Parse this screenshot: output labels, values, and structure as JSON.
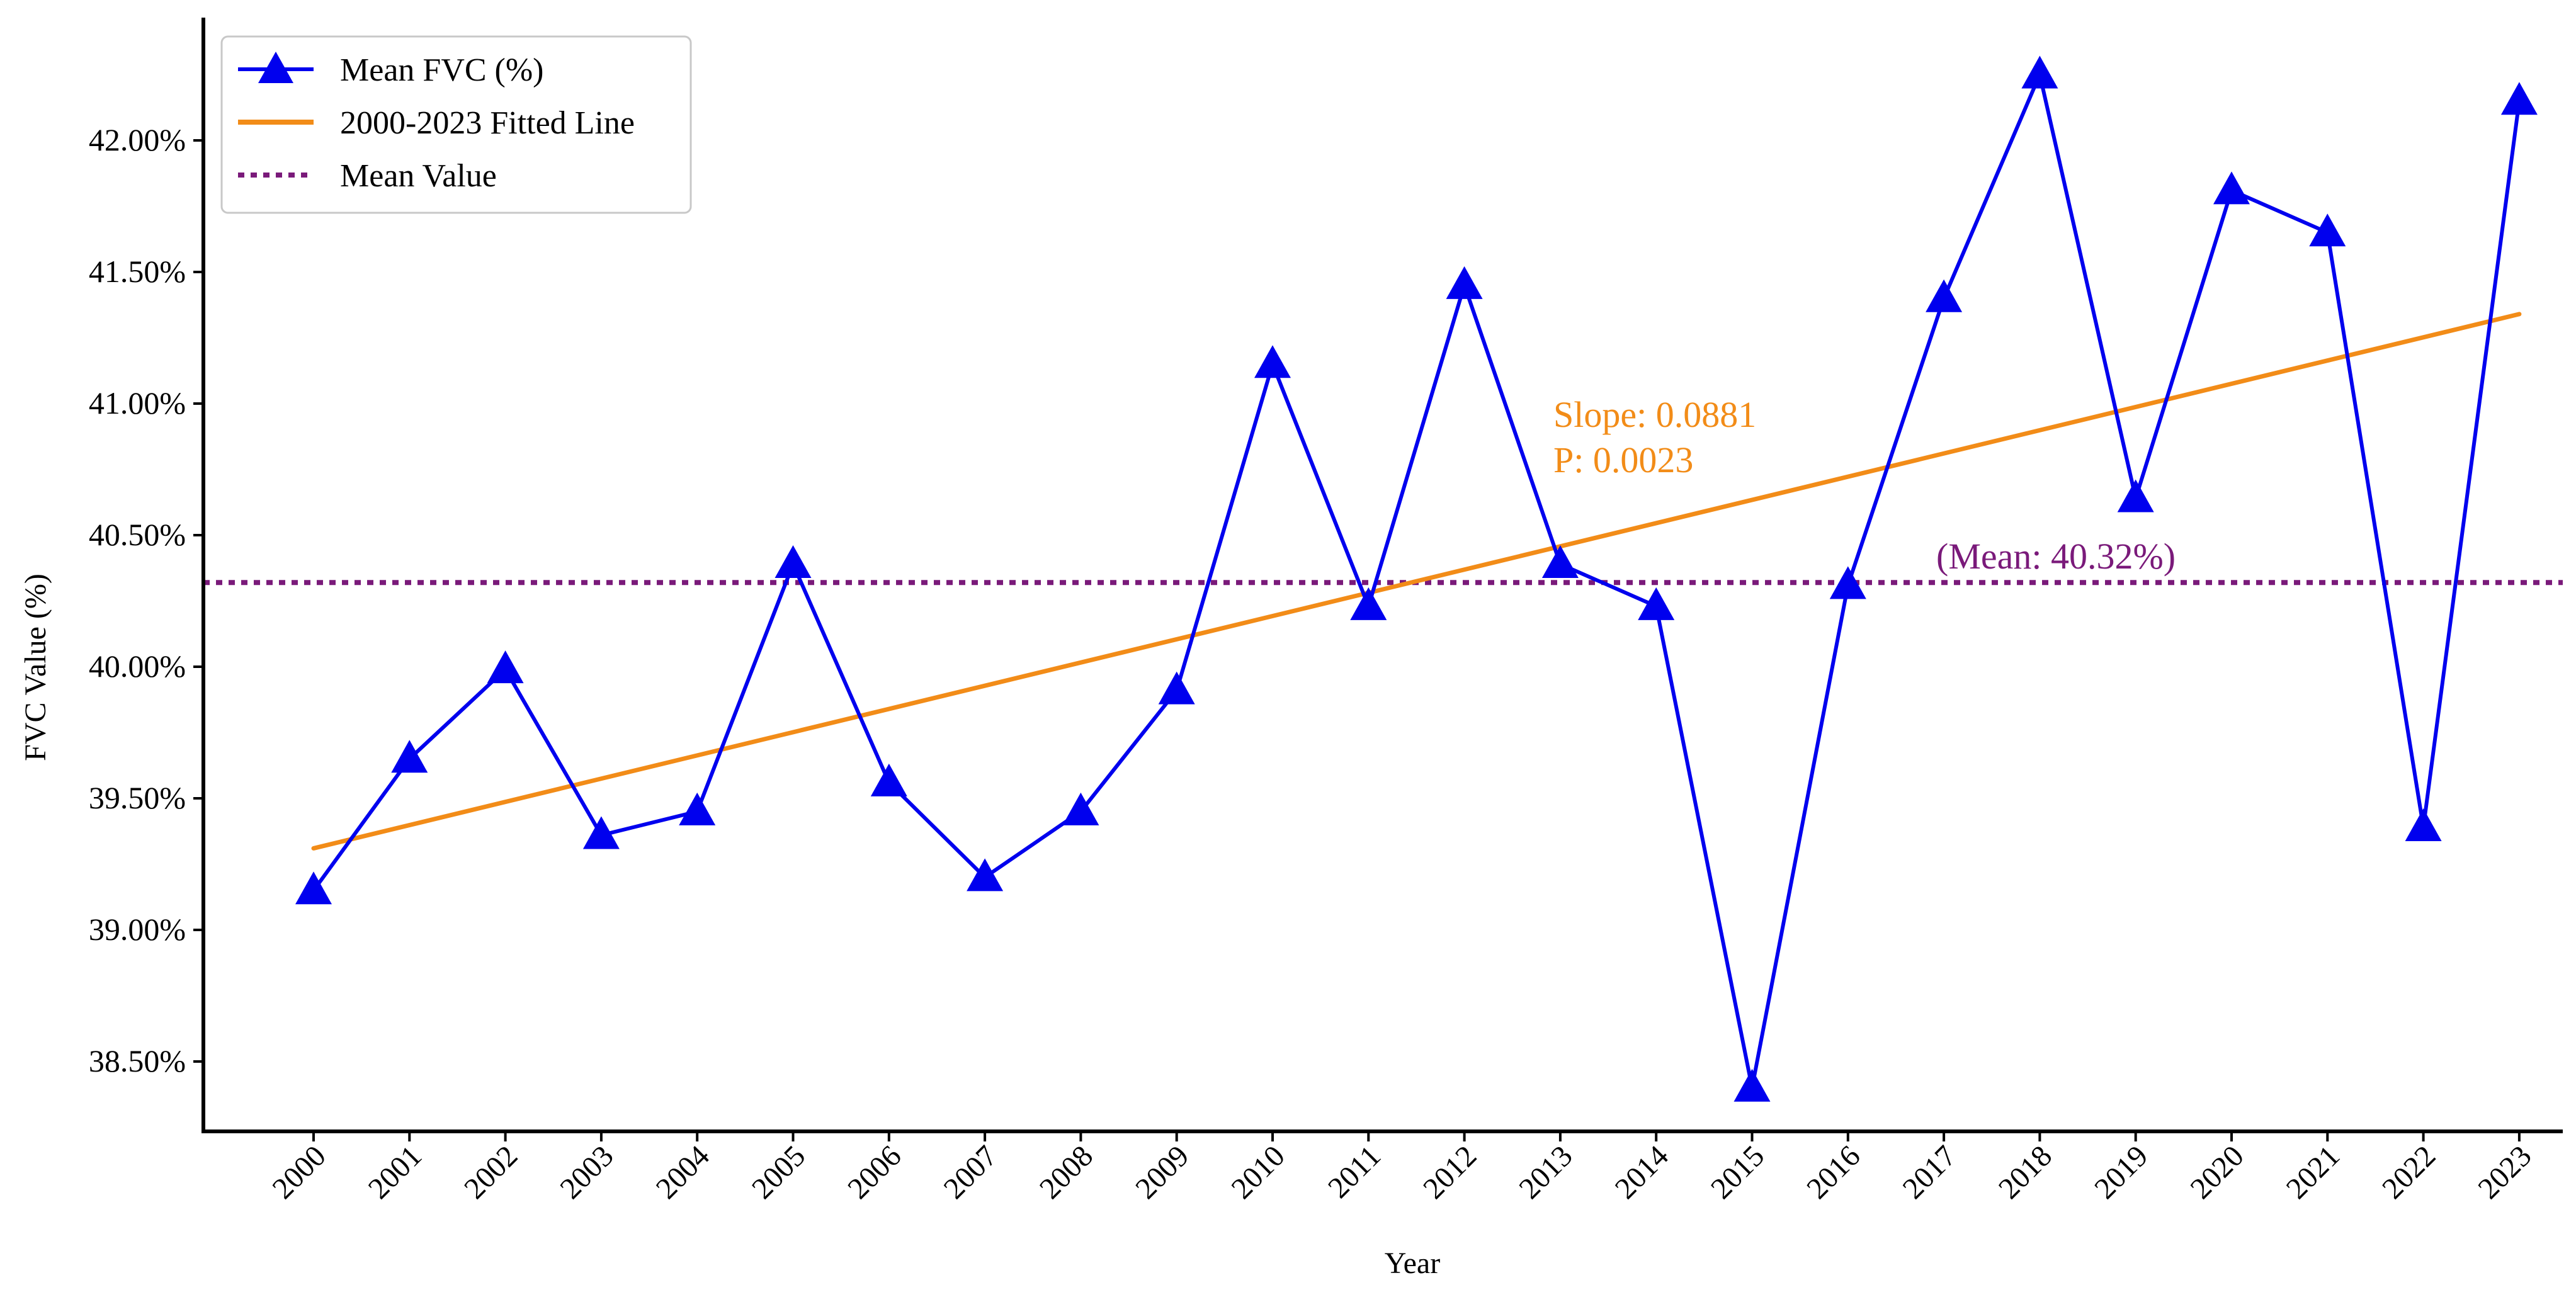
{
  "chart_data": {
    "type": "line",
    "xlabel": "Year",
    "ylabel": "FVC Value (%)",
    "ylim": [
      38.25,
      42.5
    ],
    "y_ticks": [
      38.5,
      39.0,
      39.5,
      40.0,
      40.5,
      41.0,
      41.5,
      42.0
    ],
    "y_tick_labels": [
      "38.50%",
      "39.00%",
      "39.50%",
      "40.00%",
      "40.50%",
      "41.00%",
      "41.50%",
      "42.00%"
    ],
    "x": [
      "2000",
      "2001",
      "2002",
      "2003",
      "2004",
      "2005",
      "2006",
      "2007",
      "2008",
      "2009",
      "2010",
      "2011",
      "2012",
      "2013",
      "2014",
      "2015",
      "2016",
      "2017",
      "2018",
      "2019",
      "2020",
      "2021",
      "2022",
      "2023"
    ],
    "series": [
      {
        "name": "Mean FVC (%)",
        "color": "#0000ee",
        "marker": "triangle",
        "values": [
          39.15,
          39.65,
          39.99,
          39.36,
          39.45,
          40.39,
          39.56,
          39.2,
          39.45,
          39.91,
          41.15,
          40.23,
          41.45,
          40.39,
          40.23,
          38.4,
          40.31,
          41.4,
          42.25,
          40.64,
          41.81,
          41.65,
          39.39,
          42.15
        ]
      }
    ],
    "fit_line": {
      "name": "2000-2023 Fitted Line",
      "color": "#f28c18",
      "start": [
        2000,
        39.31
      ],
      "end": [
        2023,
        41.34
      ]
    },
    "mean_line": {
      "name": "Mean Value",
      "color": "#7a1a7a",
      "value": 40.32
    },
    "annotations": {
      "slope": "Slope: 0.0881",
      "p": "P: 0.0023",
      "mean": "(Mean: 40.32%)"
    },
    "legend": {
      "position": "top-left",
      "entries": [
        "Mean FVC (%)",
        "2000-2023 Fitted Line",
        "Mean Value"
      ]
    }
  }
}
